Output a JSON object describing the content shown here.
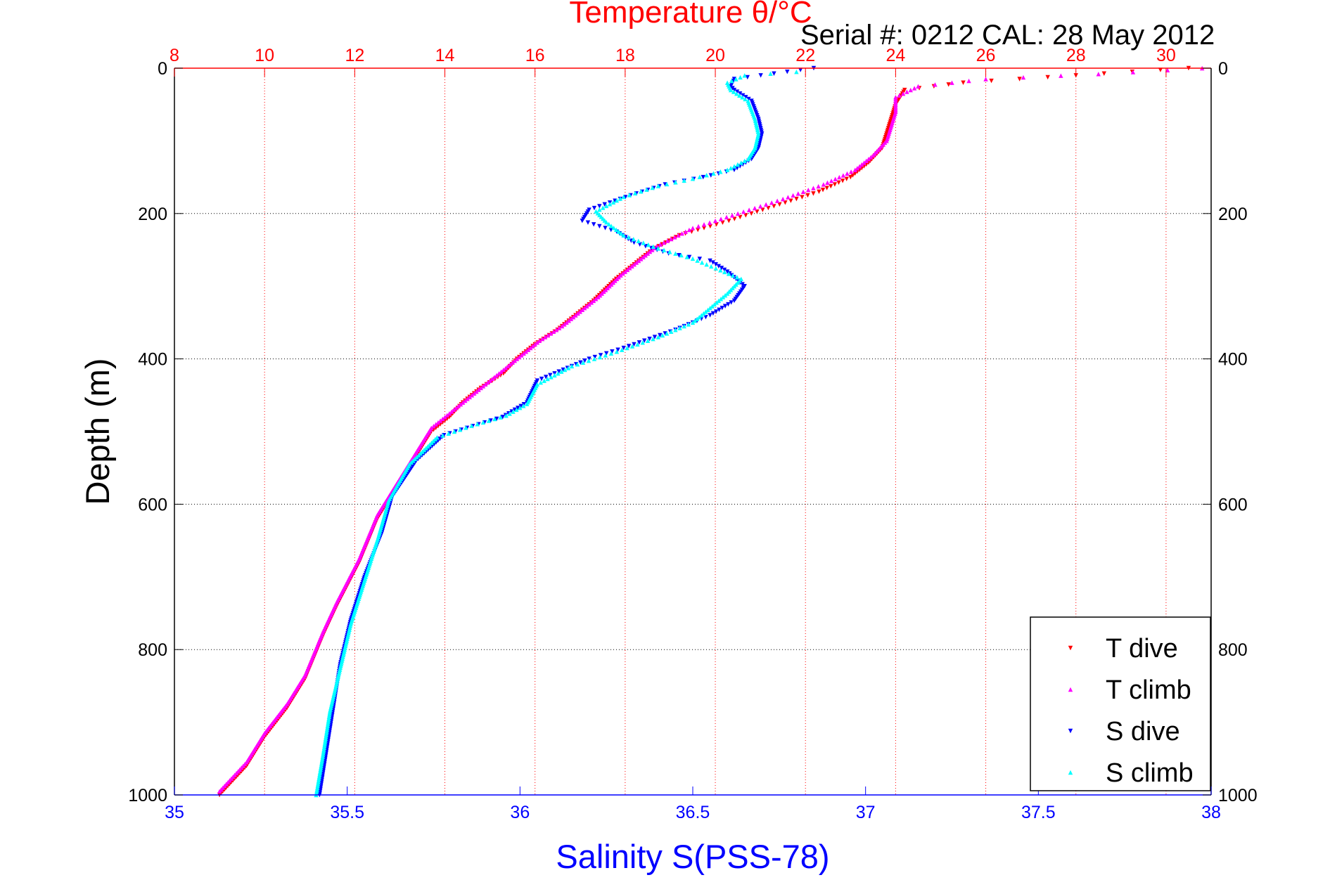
{
  "chart_data": {
    "type": "scatter",
    "title": "Temperature θ/°C",
    "subtitle": "Serial #: 0212  CAL: 28 May 2012",
    "xlabel": "Salinity S(PSS-78)",
    "ylabel": "Depth (m)",
    "x_top": {
      "label": "Temperature θ/°C",
      "range": [
        8,
        31
      ],
      "ticks": [
        8,
        10,
        12,
        14,
        16,
        18,
        20,
        22,
        24,
        26,
        28,
        30
      ],
      "tick_labels": [
        "8",
        "10",
        "12",
        "14",
        "16",
        "18",
        "20",
        "22",
        "24",
        "26",
        "28",
        "30"
      ],
      "color": "#ff0000"
    },
    "x_bottom": {
      "label": "Salinity S(PSS-78)",
      "range": [
        35,
        38
      ],
      "ticks": [
        35,
        35.5,
        36,
        36.5,
        37,
        37.5,
        38
      ],
      "tick_labels": [
        "35",
        "35.5",
        "36",
        "36.5",
        "37",
        "37.5",
        "38"
      ],
      "color": "#0000ff"
    },
    "y": {
      "label": "Depth (m)",
      "range": [
        0,
        1000
      ],
      "reversed": true,
      "ticks": [
        0,
        200,
        400,
        600,
        800,
        1000
      ],
      "tick_labels": [
        "0",
        "200",
        "400",
        "600",
        "800",
        "1000"
      ]
    },
    "grid": true,
    "legend_position": "bottom-right",
    "series": [
      {
        "name": "T dive",
        "axis": "temperature",
        "color": "#ff0000",
        "marker": "triangle-down",
        "points": [
          [
            30.5,
            0
          ],
          [
            28,
            10
          ],
          [
            25.5,
            20
          ],
          [
            24.2,
            30
          ],
          [
            24,
            50
          ],
          [
            23.9,
            70
          ],
          [
            23.8,
            90
          ],
          [
            23.7,
            110
          ],
          [
            23.4,
            130
          ],
          [
            23,
            150
          ],
          [
            22.3,
            170
          ],
          [
            21.3,
            190
          ],
          [
            20.3,
            210
          ],
          [
            19.2,
            230
          ],
          [
            18.6,
            250
          ],
          [
            18.2,
            270
          ],
          [
            17.8,
            290
          ],
          [
            17.3,
            320
          ],
          [
            16.9,
            340
          ],
          [
            16.5,
            360
          ],
          [
            16,
            380
          ],
          [
            15.6,
            400
          ],
          [
            15.3,
            420
          ],
          [
            14.8,
            440
          ],
          [
            14.4,
            460
          ],
          [
            14.1,
            480
          ],
          [
            13.7,
            500
          ],
          [
            13.3,
            540
          ],
          [
            12.9,
            580
          ],
          [
            12.5,
            620
          ],
          [
            12.1,
            680
          ],
          [
            11.6,
            740
          ],
          [
            11.3,
            780
          ],
          [
            10.9,
            840
          ],
          [
            10.5,
            880
          ],
          [
            10,
            920
          ],
          [
            9.6,
            960
          ],
          [
            9,
            1000
          ]
        ]
      },
      {
        "name": "T climb",
        "axis": "temperature",
        "color": "#ff00ff",
        "marker": "triangle-up",
        "points": [
          [
            30.8,
            0
          ],
          [
            28.5,
            8
          ],
          [
            26,
            15
          ],
          [
            24.5,
            25
          ],
          [
            24,
            40
          ],
          [
            24,
            60
          ],
          [
            23.9,
            80
          ],
          [
            23.8,
            100
          ],
          [
            23.5,
            120
          ],
          [
            23.1,
            140
          ],
          [
            22.4,
            160
          ],
          [
            21.5,
            180
          ],
          [
            20.5,
            200
          ],
          [
            19.5,
            220
          ],
          [
            18.7,
            245
          ],
          [
            18.3,
            265
          ],
          [
            17.9,
            285
          ],
          [
            17.4,
            315
          ],
          [
            17,
            335
          ],
          [
            16.6,
            355
          ],
          [
            16.1,
            375
          ],
          [
            15.7,
            395
          ],
          [
            15.3,
            415
          ],
          [
            14.9,
            435
          ],
          [
            14.5,
            455
          ],
          [
            14.1,
            475
          ],
          [
            13.7,
            495
          ],
          [
            13.3,
            535
          ],
          [
            12.9,
            575
          ],
          [
            12.5,
            615
          ],
          [
            12.1,
            675
          ],
          [
            11.6,
            735
          ],
          [
            11.3,
            775
          ],
          [
            10.9,
            835
          ],
          [
            10.5,
            875
          ],
          [
            10,
            915
          ],
          [
            9.6,
            955
          ],
          [
            9,
            995
          ]
        ]
      },
      {
        "name": "S dive",
        "axis": "salinity",
        "color": "#0000ff",
        "marker": "triangle-down",
        "points": [
          [
            36.85,
            0
          ],
          [
            36.62,
            15
          ],
          [
            36.61,
            25
          ],
          [
            36.62,
            30
          ],
          [
            36.67,
            45
          ],
          [
            36.69,
            70
          ],
          [
            36.7,
            90
          ],
          [
            36.69,
            110
          ],
          [
            36.67,
            125
          ],
          [
            36.62,
            140
          ],
          [
            36.53,
            150
          ],
          [
            36.42,
            160
          ],
          [
            36.32,
            175
          ],
          [
            36.2,
            195
          ],
          [
            36.18,
            210
          ],
          [
            36.28,
            225
          ],
          [
            36.33,
            240
          ],
          [
            36.43,
            255
          ],
          [
            36.55,
            265
          ],
          [
            36.6,
            280
          ],
          [
            36.65,
            300
          ],
          [
            36.62,
            320
          ],
          [
            36.55,
            340
          ],
          [
            36.45,
            360
          ],
          [
            36.3,
            385
          ],
          [
            36.2,
            400
          ],
          [
            36.05,
            430
          ],
          [
            36.02,
            460
          ],
          [
            35.95,
            480
          ],
          [
            35.88,
            490
          ],
          [
            35.78,
            505
          ],
          [
            35.7,
            540
          ],
          [
            35.63,
            590
          ],
          [
            35.6,
            640
          ],
          [
            35.55,
            700
          ],
          [
            35.51,
            760
          ],
          [
            35.48,
            820
          ],
          [
            35.46,
            880
          ],
          [
            35.44,
            940
          ],
          [
            35.42,
            1000
          ]
        ]
      },
      {
        "name": "S climb",
        "axis": "salinity",
        "color": "#00ffff",
        "marker": "triangle-up",
        "points": [
          [
            36.8,
            5
          ],
          [
            36.65,
            10
          ],
          [
            36.6,
            20
          ],
          [
            36.61,
            30
          ],
          [
            36.66,
            45
          ],
          [
            36.68,
            70
          ],
          [
            36.69,
            90
          ],
          [
            36.68,
            110
          ],
          [
            36.66,
            125
          ],
          [
            36.6,
            140
          ],
          [
            36.5,
            152
          ],
          [
            36.4,
            162
          ],
          [
            36.3,
            177
          ],
          [
            36.22,
            197
          ],
          [
            36.25,
            212
          ],
          [
            36.3,
            230
          ],
          [
            36.4,
            248
          ],
          [
            36.5,
            262
          ],
          [
            36.58,
            278
          ],
          [
            36.64,
            290
          ],
          [
            36.6,
            310
          ],
          [
            36.55,
            330
          ],
          [
            36.5,
            350
          ],
          [
            36.4,
            370
          ],
          [
            36.28,
            390
          ],
          [
            36.15,
            410
          ],
          [
            36.05,
            435
          ],
          [
            36.02,
            462
          ],
          [
            35.96,
            478
          ],
          [
            35.86,
            492
          ],
          [
            35.76,
            508
          ],
          [
            35.68,
            545
          ],
          [
            35.62,
            595
          ],
          [
            35.59,
            645
          ],
          [
            35.55,
            705
          ],
          [
            35.51,
            765
          ],
          [
            35.48,
            825
          ],
          [
            35.45,
            885
          ],
          [
            35.43,
            945
          ],
          [
            35.41,
            1000
          ]
        ]
      }
    ]
  },
  "legend": {
    "entries": [
      {
        "label": "T dive",
        "color": "#ff0000",
        "marker": "triangle-down"
      },
      {
        "label": "T climb",
        "color": "#ff00ff",
        "marker": "triangle-up"
      },
      {
        "label": "S dive",
        "color": "#0000ff",
        "marker": "triangle-down"
      },
      {
        "label": "S climb",
        "color": "#00ffff",
        "marker": "triangle-up"
      }
    ]
  }
}
